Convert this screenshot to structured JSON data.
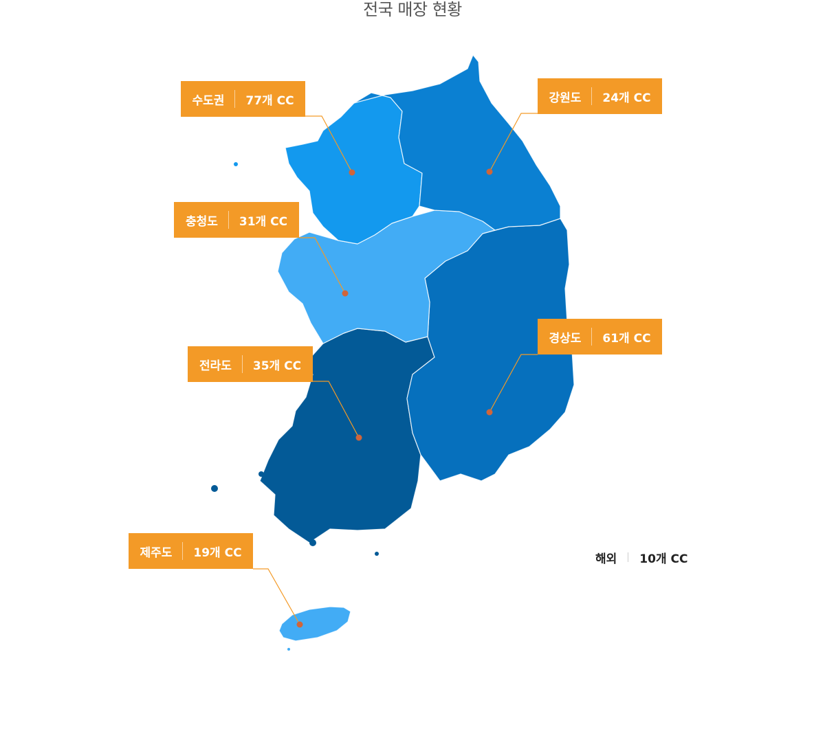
{
  "title": "전국 매장 현황",
  "colors": {
    "capital": "#1399ee",
    "gangwon": "#0b80d2",
    "chungcheong": "#42acf5",
    "jeolla": "#035a97",
    "gyeongsang": "#0670bd",
    "jeju": "#42acf5",
    "label_bg": "#f39a27",
    "dot": "#d0653a"
  },
  "regions": [
    {
      "id": "capital",
      "name": "수도권",
      "count": "77개 CC"
    },
    {
      "id": "gangwon",
      "name": "강원도",
      "count": "24개 CC"
    },
    {
      "id": "chungcheong",
      "name": "충청도",
      "count": "31개 CC"
    },
    {
      "id": "jeolla",
      "name": "전라도",
      "count": "35개 CC"
    },
    {
      "id": "gyeongsang",
      "name": "경상도",
      "count": "61개 CC"
    },
    {
      "id": "jeju",
      "name": "제주도",
      "count": "19개 CC"
    }
  ],
  "overseas": {
    "name": "해외",
    "count": "10개 CC"
  }
}
